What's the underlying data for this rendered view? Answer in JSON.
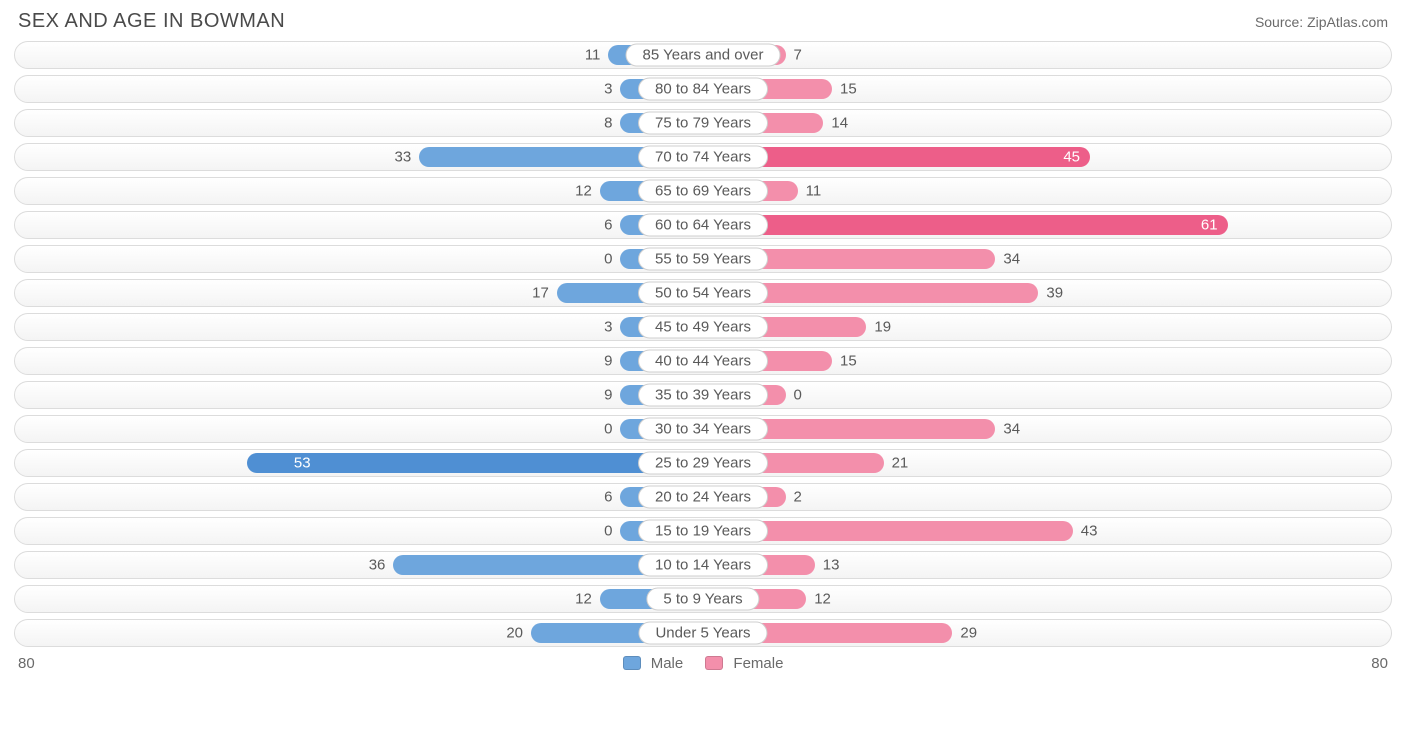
{
  "title": "SEX AND AGE IN BOWMAN",
  "source": "Source: ZipAtlas.com",
  "axis_max": 80,
  "axis_label_left": "80",
  "axis_label_right": "80",
  "min_bar_pct": 12,
  "colors": {
    "male_bar": "#6ea6dd",
    "male_bar_dark": "#4f8fd3",
    "female_bar": "#f38fab",
    "female_bar_dark": "#ed5e89",
    "track_border": "#dcdcdc",
    "text": "#5a5a5a"
  },
  "legend": {
    "male": "Male",
    "female": "Female"
  },
  "rows": [
    {
      "label": "85 Years and over",
      "male": 11,
      "female": 7
    },
    {
      "label": "80 to 84 Years",
      "male": 3,
      "female": 15
    },
    {
      "label": "75 to 79 Years",
      "male": 8,
      "female": 14
    },
    {
      "label": "70 to 74 Years",
      "male": 33,
      "female": 45
    },
    {
      "label": "65 to 69 Years",
      "male": 12,
      "female": 11
    },
    {
      "label": "60 to 64 Years",
      "male": 6,
      "female": 61
    },
    {
      "label": "55 to 59 Years",
      "male": 0,
      "female": 34
    },
    {
      "label": "50 to 54 Years",
      "male": 17,
      "female": 39
    },
    {
      "label": "45 to 49 Years",
      "male": 3,
      "female": 19
    },
    {
      "label": "40 to 44 Years",
      "male": 9,
      "female": 15
    },
    {
      "label": "35 to 39 Years",
      "male": 9,
      "female": 0
    },
    {
      "label": "30 to 34 Years",
      "male": 0,
      "female": 34
    },
    {
      "label": "25 to 29 Years",
      "male": 53,
      "female": 21
    },
    {
      "label": "20 to 24 Years",
      "male": 6,
      "female": 2
    },
    {
      "label": "15 to 19 Years",
      "male": 0,
      "female": 43
    },
    {
      "label": "10 to 14 Years",
      "male": 36,
      "female": 13
    },
    {
      "label": "5 to 9 Years",
      "male": 12,
      "female": 12
    },
    {
      "label": "Under 5 Years",
      "male": 20,
      "female": 29
    }
  ]
}
